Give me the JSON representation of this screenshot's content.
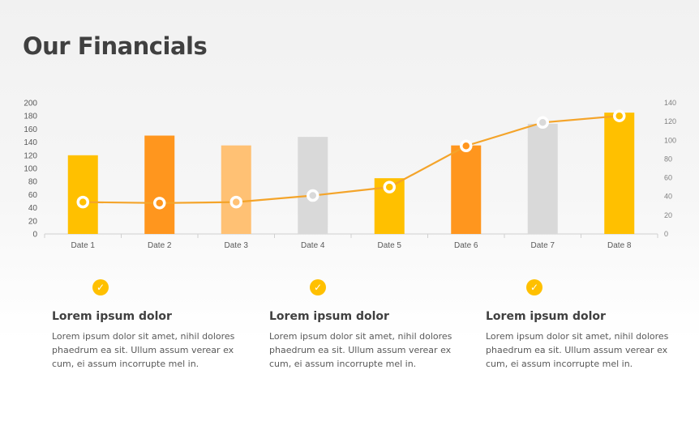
{
  "title": "Our Financials",
  "colors": {
    "yellow": "#ffc000",
    "orange": "#ff961e",
    "light_orange": "#ffc174",
    "gray": "#d9d9d9",
    "line": "#f4a42a",
    "check": "#ffc000"
  },
  "chart_data": {
    "type": "bar",
    "categories": [
      "Date 1",
      "Date 2",
      "Date 3",
      "Date 4",
      "Date 5",
      "Date 6",
      "Date 7",
      "Date 8"
    ],
    "series": [
      {
        "type": "bar",
        "axis": "left",
        "values": [
          120,
          150,
          135,
          148,
          85,
          135,
          168,
          185
        ],
        "colors": [
          "#ffc000",
          "#ff961e",
          "#ffc174",
          "#d9d9d9",
          "#ffc000",
          "#ff961e",
          "#d9d9d9",
          "#ffc000"
        ]
      },
      {
        "type": "line",
        "axis": "right",
        "values": [
          34,
          33,
          34,
          41,
          50,
          94,
          119,
          126
        ],
        "marker_colors": [
          "#ffc000",
          "#ff961e",
          "#ffc174",
          "#d9d9d9",
          "#ffc000",
          "#ff961e",
          "#d9d9d9",
          "#ffc000"
        ]
      }
    ],
    "y_left": {
      "ylim": [
        0,
        200
      ],
      "ticks": [
        "0",
        "20",
        "40",
        "60",
        "80",
        "100",
        "120",
        "140",
        "160",
        "180",
        "200"
      ]
    },
    "y_right": {
      "ylim": [
        0,
        140
      ],
      "ticks": [
        "0",
        "20",
        "40",
        "60",
        "80",
        "100",
        "120",
        "140"
      ]
    },
    "grid": false
  },
  "features": [
    {
      "heading": "Lorem ipsum dolor",
      "text": "Lorem ipsum dolor sit amet, nihil dolores phaedrum ea sit. Ullum assum verear ex cum, ei assum incorrupte mel in.",
      "icon": "check-icon"
    },
    {
      "heading": "Lorem ipsum dolor",
      "text": "Lorem ipsum dolor sit amet, nihil dolores phaedrum ea sit. Ullum assum verear ex cum, ei assum incorrupte mel in.",
      "icon": "check-icon"
    },
    {
      "heading": "Lorem ipsum dolor",
      "text": "Lorem ipsum dolor sit amet, nihil dolores phaedrum ea sit. Ullum assum verear ex cum, ei assum incorrupte mel in.",
      "icon": "check-icon"
    }
  ]
}
